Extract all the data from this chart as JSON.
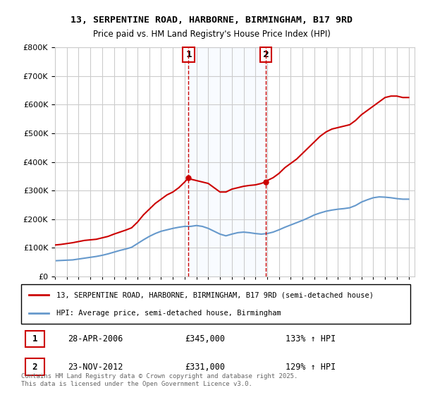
{
  "title1": "13, SERPENTINE ROAD, HARBORNE, BIRMINGHAM, B17 9RD",
  "title2": "Price paid vs. HM Land Registry's House Price Index (HPI)",
  "legend1": "13, SERPENTINE ROAD, HARBORNE, BIRMINGHAM, B17 9RD (semi-detached house)",
  "legend2": "HPI: Average price, semi-detached house, Birmingham",
  "footer": "Contains HM Land Registry data © Crown copyright and database right 2025.\nThis data is licensed under the Open Government Licence v3.0.",
  "sale1_date": "28-APR-2006",
  "sale1_price": 345000,
  "sale1_hpi": "133% ↑ HPI",
  "sale2_date": "23-NOV-2012",
  "sale2_price": 331000,
  "sale2_hpi": "129% ↑ HPI",
  "sale1_x": 2006.33,
  "sale2_x": 2012.9,
  "red_color": "#cc0000",
  "blue_color": "#6699cc",
  "annotation_color": "#cc0000",
  "bg_highlight_color": "#ddeeff",
  "vline_color": "#cc0000",
  "grid_color": "#cccccc",
  "ylim": [
    0,
    800000
  ],
  "xlim": [
    1995,
    2025.5
  ],
  "red_data": {
    "years": [
      1995.0,
      1995.5,
      1996.0,
      1996.5,
      1997.0,
      1997.5,
      1998.0,
      1998.5,
      1999.0,
      1999.5,
      2000.0,
      2000.5,
      2001.0,
      2001.5,
      2002.0,
      2002.5,
      2003.0,
      2003.5,
      2004.0,
      2004.5,
      2005.0,
      2005.5,
      2006.0,
      2006.33,
      2006.5,
      2007.0,
      2007.5,
      2008.0,
      2008.5,
      2009.0,
      2009.5,
      2010.0,
      2010.5,
      2011.0,
      2011.5,
      2012.0,
      2012.5,
      2012.9,
      2013.0,
      2013.5,
      2014.0,
      2014.5,
      2015.0,
      2015.5,
      2016.0,
      2016.5,
      2017.0,
      2017.5,
      2018.0,
      2018.5,
      2019.0,
      2019.5,
      2020.0,
      2020.5,
      2021.0,
      2021.5,
      2022.0,
      2022.5,
      2023.0,
      2023.5,
      2024.0,
      2024.5,
      2025.0
    ],
    "values": [
      110000,
      112000,
      115000,
      118000,
      122000,
      126000,
      128000,
      130000,
      135000,
      140000,
      148000,
      155000,
      162000,
      170000,
      190000,
      215000,
      235000,
      255000,
      270000,
      285000,
      295000,
      310000,
      330000,
      345000,
      340000,
      335000,
      330000,
      325000,
      310000,
      295000,
      295000,
      305000,
      310000,
      315000,
      318000,
      320000,
      325000,
      331000,
      335000,
      345000,
      360000,
      380000,
      395000,
      410000,
      430000,
      450000,
      470000,
      490000,
      505000,
      515000,
      520000,
      525000,
      530000,
      545000,
      565000,
      580000,
      595000,
      610000,
      625000,
      630000,
      630000,
      625000,
      625000
    ]
  },
  "blue_data": {
    "years": [
      1995.0,
      1995.5,
      1996.0,
      1996.5,
      1997.0,
      1997.5,
      1998.0,
      1998.5,
      1999.0,
      1999.5,
      2000.0,
      2000.5,
      2001.0,
      2001.5,
      2002.0,
      2002.5,
      2003.0,
      2003.5,
      2004.0,
      2004.5,
      2005.0,
      2005.5,
      2006.0,
      2006.5,
      2007.0,
      2007.5,
      2008.0,
      2008.5,
      2009.0,
      2009.5,
      2010.0,
      2010.5,
      2011.0,
      2011.5,
      2012.0,
      2012.5,
      2013.0,
      2013.5,
      2014.0,
      2014.5,
      2015.0,
      2015.5,
      2016.0,
      2016.5,
      2017.0,
      2017.5,
      2018.0,
      2018.5,
      2019.0,
      2019.5,
      2020.0,
      2020.5,
      2021.0,
      2021.5,
      2022.0,
      2022.5,
      2023.0,
      2023.5,
      2024.0,
      2024.5,
      2025.0
    ],
    "values": [
      55000,
      56000,
      57000,
      58000,
      61000,
      64000,
      67000,
      70000,
      74000,
      79000,
      85000,
      91000,
      96000,
      102000,
      115000,
      128000,
      140000,
      150000,
      158000,
      163000,
      168000,
      172000,
      175000,
      175000,
      178000,
      175000,
      168000,
      158000,
      148000,
      142000,
      148000,
      153000,
      155000,
      153000,
      150000,
      148000,
      150000,
      155000,
      163000,
      172000,
      180000,
      188000,
      196000,
      205000,
      215000,
      222000,
      228000,
      232000,
      235000,
      237000,
      240000,
      248000,
      260000,
      268000,
      275000,
      278000,
      277000,
      275000,
      272000,
      270000,
      270000
    ]
  }
}
